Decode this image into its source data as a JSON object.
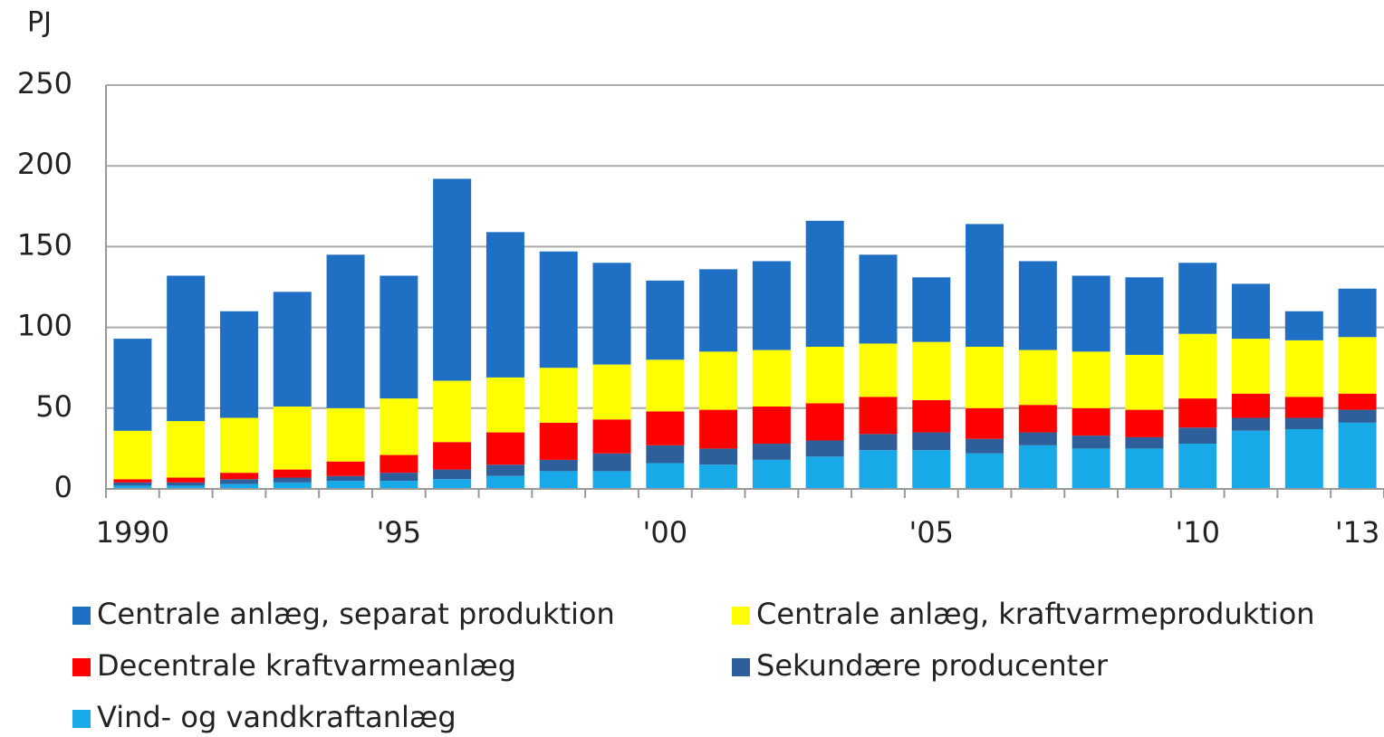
{
  "chart_data": {
    "type": "stacked_bar",
    "y_label": "PJ",
    "categories": [
      "1990",
      null,
      null,
      null,
      null,
      "'95",
      null,
      null,
      null,
      null,
      "'00",
      null,
      null,
      null,
      null,
      "'05",
      null,
      null,
      null,
      null,
      "'10",
      null,
      null,
      "'13"
    ],
    "series": [
      {
        "name": "Centrale anlæg, separat produktion",
        "color": "#1f6fc4",
        "values": [
          57,
          90,
          66,
          71,
          95,
          76,
          125,
          90,
          72,
          63,
          49,
          51,
          55,
          78,
          55,
          40,
          76,
          55,
          47,
          48,
          44,
          34,
          18,
          30
        ]
      },
      {
        "name": "Centrale anlæg, kraftvarmeproduktion",
        "color": "#ffff00",
        "values": [
          30,
          35,
          34,
          39,
          33,
          35,
          38,
          34,
          34,
          34,
          32,
          36,
          35,
          35,
          33,
          36,
          38,
          34,
          35,
          34,
          40,
          34,
          35,
          35
        ]
      },
      {
        "name": "Decentrale kraftvarmeanlæg",
        "color": "#ff0000",
        "values": [
          2,
          3,
          4,
          5,
          9,
          11,
          17,
          20,
          23,
          21,
          21,
          24,
          23,
          23,
          23,
          20,
          19,
          17,
          17,
          17,
          18,
          15,
          13,
          10
        ]
      },
      {
        "name": "Sekundære producenter",
        "color": "#2e5f9a",
        "values": [
          2,
          2,
          3,
          3,
          3,
          5,
          6,
          7,
          7,
          11,
          11,
          10,
          10,
          10,
          10,
          11,
          9,
          8,
          8,
          7,
          10,
          8,
          7,
          8
        ]
      },
      {
        "name": "Vind- og vandkraftanlæg",
        "color": "#17a9e8",
        "values": [
          2,
          2,
          3,
          4,
          5,
          5,
          6,
          8,
          11,
          11,
          16,
          15,
          18,
          20,
          24,
          24,
          22,
          27,
          25,
          25,
          28,
          36,
          37,
          41
        ]
      }
    ],
    "ylim": [
      0,
      250
    ],
    "yticks": [
      0,
      50,
      100,
      150,
      200,
      250
    ],
    "grid": true
  }
}
